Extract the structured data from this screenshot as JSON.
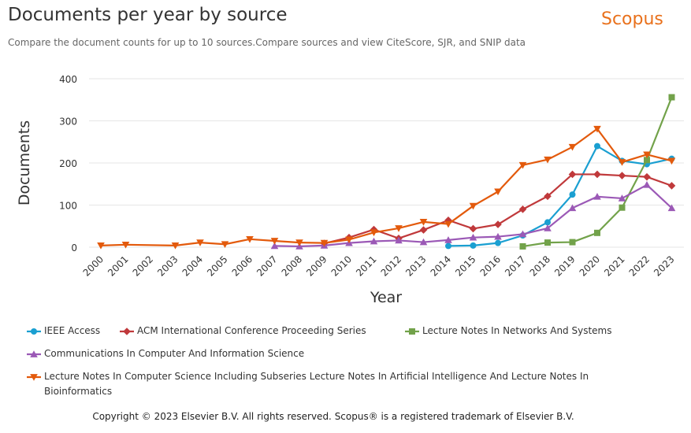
{
  "page": {
    "title": "Documents per year by source",
    "subtitle": "Compare the document counts for up to 10 sources.Compare sources and view CiteScore, SJR, and SNIP data",
    "brand": "Scopus",
    "copyright": "Copyright © 2023 Elsevier B.V. All rights reserved. Scopus® is a registered trademark of Elsevier B.V."
  },
  "chart_data": {
    "type": "line",
    "xlabel": "Year",
    "ylabel": "Documents",
    "ylim": [
      0,
      400
    ],
    "yticks": [
      0,
      100,
      200,
      300,
      400
    ],
    "grid": true,
    "legend_position": "bottom",
    "x": [
      "2000",
      "2001",
      "2002",
      "2003",
      "2004",
      "2005",
      "2006",
      "2007",
      "2008",
      "2009",
      "2010",
      "2011",
      "2012",
      "2013",
      "2014",
      "2015",
      "2016",
      "2017",
      "2018",
      "2019",
      "2020",
      "2021",
      "2022",
      "2023"
    ],
    "series": [
      {
        "name": "IEEE Access",
        "color": "#1a9fd1",
        "marker": "circle",
        "points": [
          [
            2014,
            3
          ],
          [
            2015,
            4
          ],
          [
            2016,
            10
          ],
          [
            2017,
            28
          ],
          [
            2018,
            59
          ],
          [
            2019,
            125
          ],
          [
            2020,
            240
          ],
          [
            2021,
            205
          ],
          [
            2022,
            197
          ],
          [
            2023,
            210
          ]
        ]
      },
      {
        "name": "ACM International Conference Proceeding Series",
        "color": "#c0393b",
        "marker": "diamond",
        "points": [
          [
            2009,
            9
          ],
          [
            2010,
            23
          ],
          [
            2011,
            42
          ],
          [
            2012,
            21
          ],
          [
            2013,
            41
          ],
          [
            2014,
            64
          ],
          [
            2015,
            44
          ],
          [
            2016,
            54
          ],
          [
            2017,
            90
          ],
          [
            2018,
            121
          ],
          [
            2019,
            173
          ],
          [
            2020,
            173
          ],
          [
            2021,
            170
          ],
          [
            2022,
            167
          ],
          [
            2023,
            146
          ]
        ]
      },
      {
        "name": "Lecture Notes In Networks And Systems",
        "color": "#72a24a",
        "marker": "square",
        "points": [
          [
            2017,
            2
          ],
          [
            2018,
            11
          ],
          [
            2019,
            12
          ],
          [
            2020,
            34
          ],
          [
            2021,
            94
          ],
          [
            2022,
            207
          ],
          [
            2023,
            356
          ]
        ]
      },
      {
        "name": "Communications In Computer And Information Science",
        "color": "#9b59b6",
        "marker": "triangle-up",
        "points": [
          [
            2007,
            3
          ],
          [
            2008,
            2
          ],
          [
            2009,
            4
          ],
          [
            2010,
            10
          ],
          [
            2011,
            14
          ],
          [
            2012,
            16
          ],
          [
            2013,
            12
          ],
          [
            2014,
            17
          ],
          [
            2015,
            23
          ],
          [
            2016,
            25
          ],
          [
            2017,
            31
          ],
          [
            2018,
            45
          ],
          [
            2019,
            93
          ],
          [
            2020,
            120
          ],
          [
            2021,
            116
          ],
          [
            2022,
            148
          ],
          [
            2023,
            93
          ]
        ]
      },
      {
        "name": "Lecture Notes In Computer Science Including Subseries Lecture Notes In Artificial Intelligence And Lecture Notes In Bioinformatics",
        "color": "#e35a0c",
        "marker": "triangle-down",
        "points": [
          [
            2000,
            4
          ],
          [
            2001,
            6
          ],
          [
            2003,
            4
          ],
          [
            2004,
            11
          ],
          [
            2005,
            7
          ],
          [
            2006,
            19
          ],
          [
            2007,
            15
          ],
          [
            2008,
            11
          ],
          [
            2009,
            10
          ],
          [
            2010,
            18
          ],
          [
            2011,
            35
          ],
          [
            2012,
            45
          ],
          [
            2013,
            60
          ],
          [
            2014,
            55
          ],
          [
            2015,
            98
          ],
          [
            2016,
            132
          ],
          [
            2017,
            195
          ],
          [
            2018,
            208
          ],
          [
            2019,
            238
          ],
          [
            2020,
            281
          ],
          [
            2021,
            202
          ],
          [
            2022,
            220
          ],
          [
            2023,
            205
          ]
        ]
      }
    ]
  }
}
